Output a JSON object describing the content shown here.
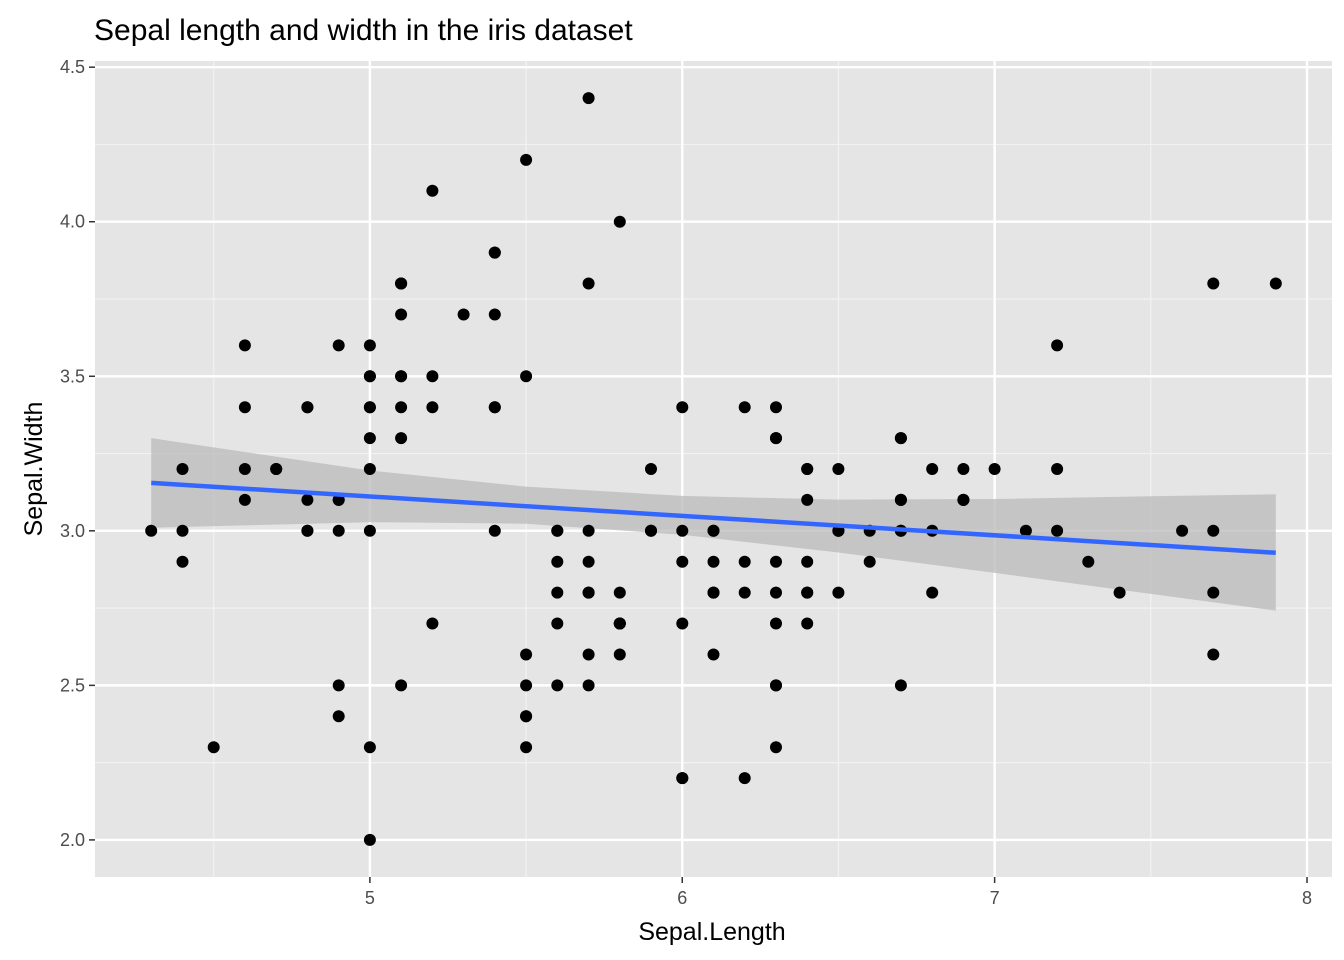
{
  "chart_data": {
    "type": "scatter",
    "title": "Sepal length and width in the iris dataset",
    "xlabel": "Sepal.Length",
    "ylabel": "Sepal.Width",
    "xlim": [
      4.12,
      8.08
    ],
    "ylim": [
      1.88,
      4.52
    ],
    "x_ticks": [
      5,
      6,
      7,
      8
    ],
    "x_tick_labels": [
      "5",
      "6",
      "7",
      "8"
    ],
    "y_ticks": [
      2.0,
      2.5,
      3.0,
      3.5,
      4.0,
      4.5
    ],
    "y_tick_labels": [
      "2.0",
      "2.5",
      "3.0",
      "3.5",
      "4.0",
      "4.5"
    ],
    "grid": true,
    "background": "#e5e5e5",
    "point_color": "#000000",
    "fit_color": "#3366ff",
    "band_color": "#bdbdbd",
    "points": [
      [
        5.1,
        3.5
      ],
      [
        4.9,
        3.0
      ],
      [
        4.7,
        3.2
      ],
      [
        4.6,
        3.1
      ],
      [
        5.0,
        3.6
      ],
      [
        5.4,
        3.9
      ],
      [
        4.6,
        3.4
      ],
      [
        5.0,
        3.4
      ],
      [
        4.4,
        2.9
      ],
      [
        4.9,
        3.1
      ],
      [
        5.4,
        3.7
      ],
      [
        4.8,
        3.4
      ],
      [
        4.8,
        3.0
      ],
      [
        4.3,
        3.0
      ],
      [
        5.8,
        4.0
      ],
      [
        5.7,
        4.4
      ],
      [
        5.4,
        3.9
      ],
      [
        5.1,
        3.5
      ],
      [
        5.7,
        3.8
      ],
      [
        5.1,
        3.8
      ],
      [
        5.4,
        3.4
      ],
      [
        5.1,
        3.7
      ],
      [
        4.6,
        3.6
      ],
      [
        5.1,
        3.3
      ],
      [
        4.8,
        3.4
      ],
      [
        5.0,
        3.0
      ],
      [
        5.0,
        3.4
      ],
      [
        5.2,
        3.5
      ],
      [
        5.2,
        3.4
      ],
      [
        4.7,
        3.2
      ],
      [
        4.8,
        3.1
      ],
      [
        5.4,
        3.4
      ],
      [
        5.2,
        4.1
      ],
      [
        5.5,
        4.2
      ],
      [
        4.9,
        3.1
      ],
      [
        5.0,
        3.2
      ],
      [
        5.5,
        3.5
      ],
      [
        4.9,
        3.6
      ],
      [
        4.4,
        3.0
      ],
      [
        5.1,
        3.4
      ],
      [
        5.0,
        3.5
      ],
      [
        4.5,
        2.3
      ],
      [
        4.4,
        3.2
      ],
      [
        5.0,
        3.5
      ],
      [
        5.1,
        3.8
      ],
      [
        4.8,
        3.0
      ],
      [
        5.1,
        3.8
      ],
      [
        4.6,
        3.2
      ],
      [
        5.3,
        3.7
      ],
      [
        5.0,
        3.3
      ],
      [
        7.0,
        3.2
      ],
      [
        6.4,
        3.2
      ],
      [
        6.9,
        3.1
      ],
      [
        5.5,
        2.3
      ],
      [
        6.5,
        2.8
      ],
      [
        5.7,
        2.8
      ],
      [
        6.3,
        3.3
      ],
      [
        4.9,
        2.4
      ],
      [
        6.6,
        2.9
      ],
      [
        5.2,
        2.7
      ],
      [
        5.0,
        2.0
      ],
      [
        5.9,
        3.0
      ],
      [
        6.0,
        2.2
      ],
      [
        6.1,
        2.9
      ],
      [
        5.6,
        2.9
      ],
      [
        6.7,
        3.1
      ],
      [
        5.6,
        3.0
      ],
      [
        5.8,
        2.7
      ],
      [
        6.2,
        2.2
      ],
      [
        5.6,
        2.5
      ],
      [
        5.9,
        3.2
      ],
      [
        6.1,
        2.8
      ],
      [
        6.3,
        2.5
      ],
      [
        6.1,
        2.8
      ],
      [
        6.4,
        2.9
      ],
      [
        6.6,
        3.0
      ],
      [
        6.8,
        2.8
      ],
      [
        6.7,
        3.0
      ],
      [
        6.0,
        2.9
      ],
      [
        5.7,
        2.6
      ],
      [
        5.5,
        2.4
      ],
      [
        5.5,
        2.4
      ],
      [
        5.8,
        2.7
      ],
      [
        6.0,
        2.7
      ],
      [
        5.4,
        3.0
      ],
      [
        6.0,
        3.4
      ],
      [
        6.7,
        3.1
      ],
      [
        6.3,
        2.3
      ],
      [
        5.6,
        3.0
      ],
      [
        5.5,
        2.5
      ],
      [
        5.5,
        2.6
      ],
      [
        6.1,
        3.0
      ],
      [
        5.8,
        2.6
      ],
      [
        5.0,
        2.3
      ],
      [
        5.6,
        2.7
      ],
      [
        5.7,
        3.0
      ],
      [
        5.7,
        2.9
      ],
      [
        6.2,
        2.9
      ],
      [
        5.1,
        2.5
      ],
      [
        5.7,
        2.8
      ],
      [
        6.3,
        3.3
      ],
      [
        5.8,
        2.7
      ],
      [
        7.1,
        3.0
      ],
      [
        6.3,
        2.9
      ],
      [
        6.5,
        3.0
      ],
      [
        7.6,
        3.0
      ],
      [
        4.9,
        2.5
      ],
      [
        7.3,
        2.9
      ],
      [
        6.7,
        2.5
      ],
      [
        7.2,
        3.6
      ],
      [
        6.5,
        3.2
      ],
      [
        6.4,
        2.7
      ],
      [
        6.8,
        3.0
      ],
      [
        5.7,
        2.5
      ],
      [
        5.8,
        2.8
      ],
      [
        6.4,
        3.2
      ],
      [
        6.5,
        3.0
      ],
      [
        7.7,
        3.8
      ],
      [
        7.7,
        2.6
      ],
      [
        6.0,
        2.2
      ],
      [
        6.9,
        3.2
      ],
      [
        5.6,
        2.8
      ],
      [
        7.7,
        2.8
      ],
      [
        6.3,
        2.7
      ],
      [
        6.7,
        3.3
      ],
      [
        7.2,
        3.2
      ],
      [
        6.2,
        2.8
      ],
      [
        6.1,
        3.0
      ],
      [
        6.4,
        2.8
      ],
      [
        7.2,
        3.0
      ],
      [
        7.4,
        2.8
      ],
      [
        7.9,
        3.8
      ],
      [
        6.4,
        2.8
      ],
      [
        6.3,
        2.8
      ],
      [
        6.1,
        2.6
      ],
      [
        7.7,
        3.0
      ],
      [
        6.3,
        3.4
      ],
      [
        6.4,
        3.1
      ],
      [
        6.0,
        3.0
      ],
      [
        6.9,
        3.1
      ],
      [
        6.7,
        3.1
      ],
      [
        6.9,
        3.1
      ],
      [
        5.8,
        2.7
      ],
      [
        6.8,
        3.2
      ],
      [
        6.7,
        3.3
      ],
      [
        6.7,
        3.0
      ],
      [
        6.3,
        2.5
      ],
      [
        6.5,
        3.0
      ],
      [
        6.2,
        3.4
      ],
      [
        5.9,
        3.0
      ]
    ],
    "fit_line": {
      "x": [
        4.3,
        7.9
      ],
      "y": [
        3.155,
        2.929
      ]
    },
    "confidence_band": {
      "x": [
        4.3,
        5.0,
        5.5,
        6.0,
        6.5,
        7.0,
        7.5,
        7.9
      ],
      "upper": [
        3.3,
        3.195,
        3.143,
        3.113,
        3.101,
        3.103,
        3.112,
        3.118
      ],
      "lower": [
        3.01,
        3.028,
        3.023,
        2.987,
        2.93,
        2.864,
        2.796,
        2.742
      ]
    }
  }
}
